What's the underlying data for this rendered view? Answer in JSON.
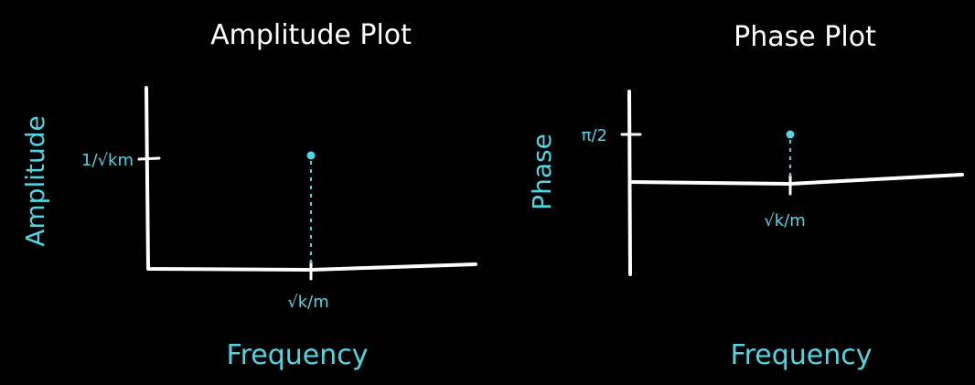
{
  "colors": {
    "background": "#000000",
    "ink": "#ffffff",
    "accent": "#4fd6e4"
  },
  "chart_data": [
    {
      "type": "scatter",
      "title": "Amplitude Plot",
      "xlabel": "Frequency",
      "ylabel": "Amplitude",
      "xlim": [
        0,
        1.0
      ],
      "ylim": [
        0,
        1.0
      ],
      "x_ticks": [
        {
          "value": 0.5,
          "label": "√k/m"
        }
      ],
      "y_ticks": [
        {
          "value": 1.0,
          "label": "1/√km"
        }
      ],
      "points": [
        {
          "x": 0.5,
          "y": 1.0
        }
      ]
    },
    {
      "type": "scatter",
      "title": "Phase Plot",
      "xlabel": "Frequency",
      "ylabel": "Phase",
      "xlim": [
        0,
        1.0
      ],
      "ylim": [
        -1.0,
        1.0
      ],
      "x_ticks": [
        {
          "value": 0.5,
          "label": "√k/m"
        }
      ],
      "y_ticks": [
        {
          "value": 1.0,
          "label": "π/2"
        }
      ],
      "points": [
        {
          "x": 0.5,
          "y": 1.0
        }
      ]
    }
  ]
}
